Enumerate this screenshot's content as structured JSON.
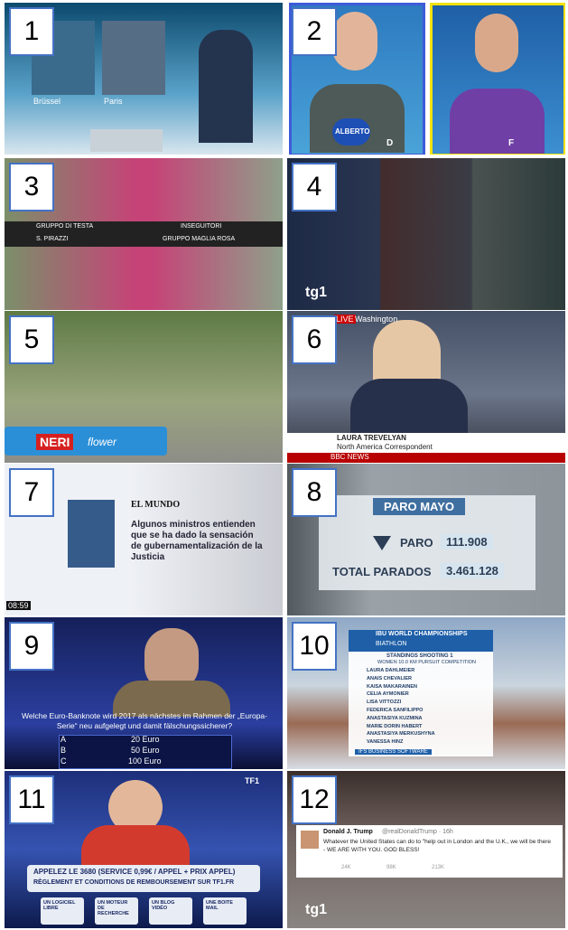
{
  "tiles": [
    {
      "number": "1",
      "labels": [
        "Brüssel",
        "Paris"
      ]
    },
    {
      "number": "2",
      "labels": [
        "ALBERTO",
        "D",
        "F"
      ]
    },
    {
      "number": "3",
      "labels": [
        "GRUPPO DI TESTA",
        "S. PIRAZZI",
        "INSEGUITORI",
        "GRUPPO MAGLIA ROSA"
      ]
    },
    {
      "number": "4",
      "labels": [
        "tg1"
      ]
    },
    {
      "number": "5",
      "labels": [
        "NERI",
        "flower"
      ]
    },
    {
      "number": "6",
      "labels": [
        "LIVE",
        "Washington",
        "LAURA TREVELYAN",
        "North America Correspondent",
        "BBC NEWS"
      ]
    },
    {
      "number": "7",
      "labels": [
        "EL MUNDO",
        "Algunos ministros entienden que se ha dado la sensación de gubernamentalización de la Justicia",
        "08:59"
      ]
    },
    {
      "number": "8",
      "labels": [
        "PARO MAYO",
        "PARO",
        "111.908",
        "TOTAL PARADOS",
        "3.461.128"
      ]
    },
    {
      "number": "9",
      "labels": [
        "Welche Euro-Banknote wird 2017 als nächstes im Rahmen der „Europa-Serie“ neu aufgelegt und damit fälschungssicherer?",
        "A",
        "20 Euro",
        "B",
        "50 Euro",
        "C",
        "100 Euro"
      ]
    },
    {
      "number": "10",
      "labels": [
        "IBU WORLD CHAMPIONSHIPS",
        "BIATHLON",
        "STANDINGS SHOOTING 1",
        "WOMEN 10.0 KM PURSUIT COMPETITION",
        "LAURA DAHLMEIER",
        "ANAIS CHEVALIER",
        "KAISA MAKARAINEN",
        "CELIA AYMONIER",
        "LISA VITTOZZI",
        "FEDERICA SANFILIPPO",
        "ANASTASIYA KUZMINA",
        "MARIE DORIN HABERT",
        "ANASTASIYA MERKUSHYNA",
        "VANESSA HINZ",
        "IFS BUSINESS SOFTWARE"
      ]
    },
    {
      "number": "11",
      "labels": [
        "APPELEZ LE 3680 (SERVICE 0,99€ / APPEL + PRIX APPEL)",
        "RÈGLEMENT ET CONDITIONS DE REMBOURSEMENT SUR TF1.FR",
        "UN LOGICIEL LIBRE",
        "UN MOTEUR DE RECHERCHE",
        "UN BLOG VIDÉO",
        "UNE BOITE MAIL",
        "TF1"
      ]
    },
    {
      "number": "12",
      "labels": [
        "Donald J. Trump",
        "@realDonaldTrump · 16h",
        "Whatever the United States can do to \"help out in London and the U.K., we will be there - WE ARE WITH YOU. GOD BLESS!",
        "24K",
        "98K",
        "213K",
        "tg1"
      ]
    }
  ]
}
